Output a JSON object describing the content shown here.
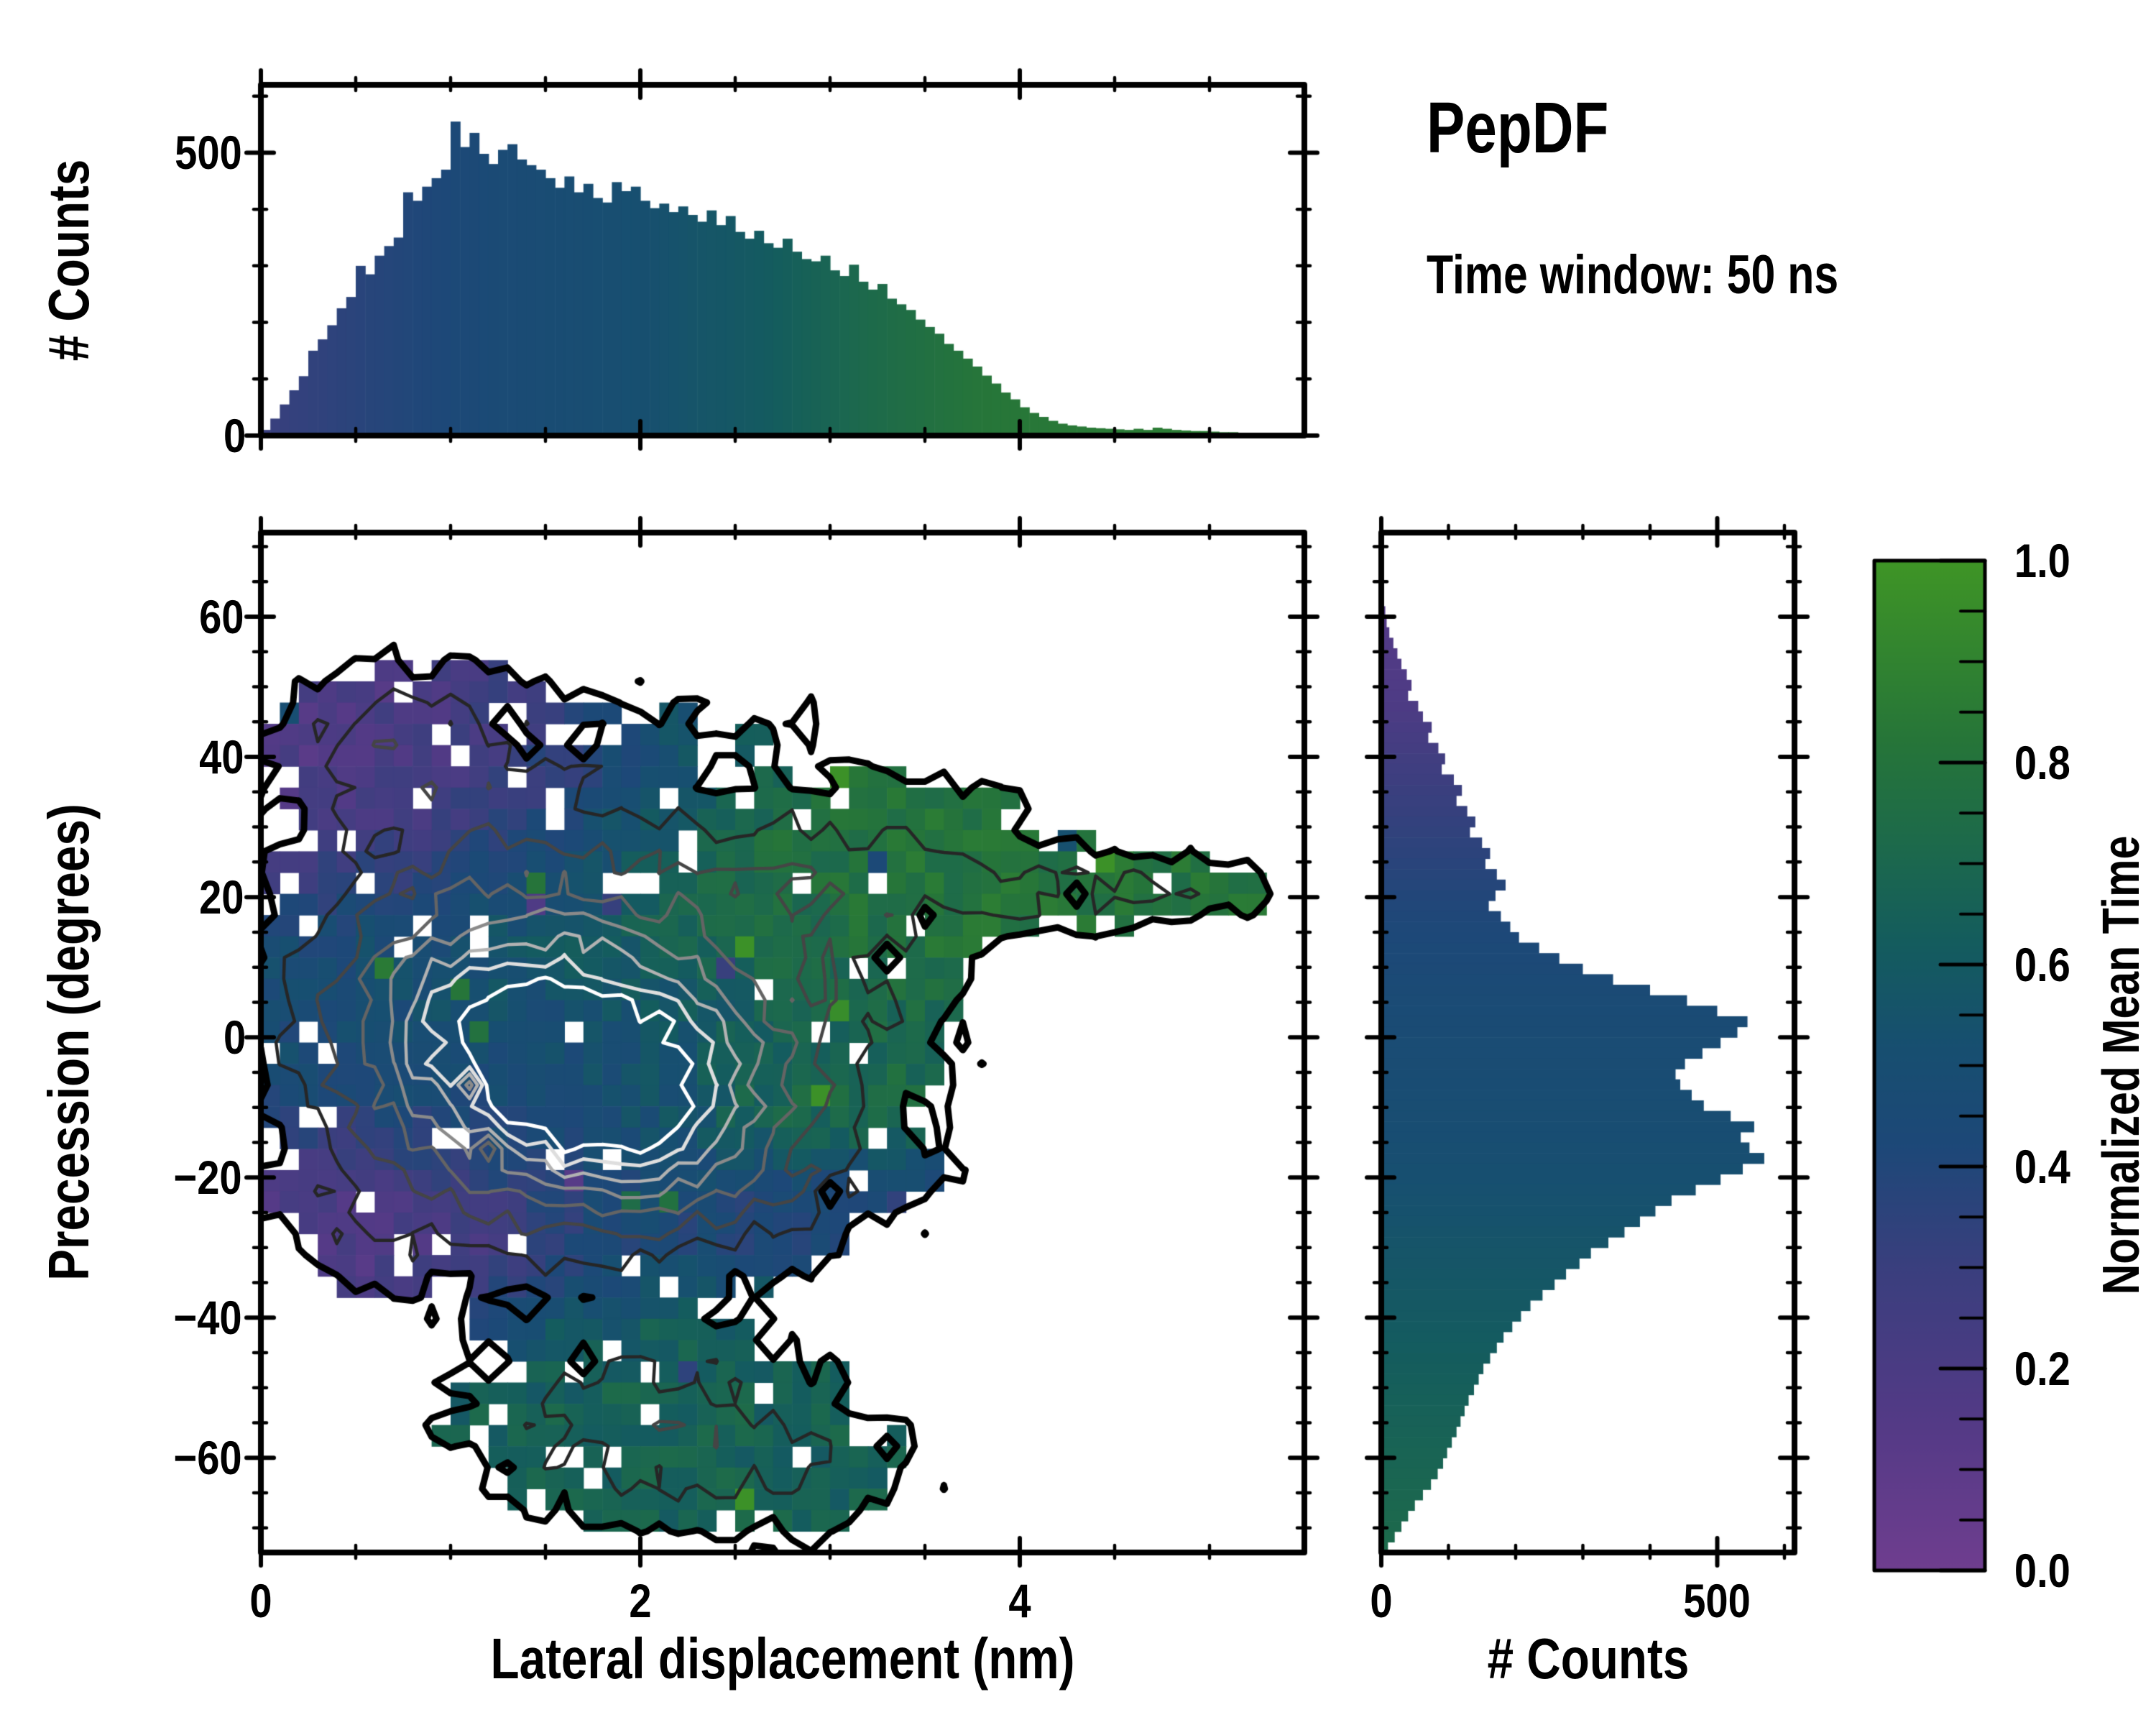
{
  "header": {
    "title": "PepDF",
    "subtitle": "Time window: 50 ns"
  },
  "colors": {
    "background": "#ffffff",
    "axis": "#000000",
    "colormap": [
      [
        0,
        "#6f3e8f"
      ],
      [
        0.15,
        "#533a86"
      ],
      [
        0.3,
        "#3a3f7e"
      ],
      [
        0.42,
        "#1d4878"
      ],
      [
        0.52,
        "#174f70"
      ],
      [
        0.62,
        "#145c5e"
      ],
      [
        0.72,
        "#1d6a4b"
      ],
      [
        0.82,
        "#267539"
      ],
      [
        1,
        "#3f9526"
      ]
    ],
    "contour_colors": [
      "#000000",
      "#262626",
      "#454545",
      "#646464",
      "#8a8a8a",
      "#b2b2b2",
      "#dedede",
      "#ffffff"
    ]
  },
  "chart_data": [
    {
      "id": "top_histogram",
      "type": "bar",
      "orientation": "vertical",
      "ylabel": "# Counts",
      "x_range": [
        0,
        5.5
      ],
      "bin_width": 0.05,
      "ylim": [
        0,
        620
      ],
      "y_ticks": [
        {
          "v": 0,
          "label": "0"
        },
        {
          "v": 500,
          "label": "500"
        }
      ],
      "y_minor_step": 100,
      "x_ticks": [
        0,
        2,
        4
      ],
      "x_minor_step": 0.5,
      "values": [
        10,
        30,
        55,
        80,
        105,
        150,
        170,
        195,
        225,
        245,
        300,
        285,
        318,
        335,
        350,
        430,
        415,
        440,
        455,
        470,
        555,
        510,
        535,
        498,
        480,
        505,
        515,
        488,
        478,
        470,
        455,
        438,
        458,
        430,
        445,
        420,
        412,
        448,
        432,
        440,
        415,
        402,
        410,
        395,
        405,
        390,
        378,
        398,
        372,
        388,
        360,
        348,
        362,
        340,
        332,
        348,
        325,
        312,
        308,
        318,
        292,
        282,
        302,
        272,
        258,
        268,
        242,
        232,
        222,
        205,
        192,
        180,
        162,
        150,
        136,
        122,
        106,
        92,
        76,
        64,
        50,
        40,
        33,
        26,
        21,
        18,
        16,
        14,
        13,
        12,
        11,
        10,
        12,
        10,
        14,
        12,
        10,
        9,
        8,
        8,
        7,
        6,
        6,
        5,
        5,
        4,
        4,
        3,
        3,
        2
      ],
      "color_profile": [
        [
          0,
          0.3
        ],
        [
          0.6,
          0.38
        ],
        [
          1.2,
          0.45
        ],
        [
          2.0,
          0.52
        ],
        [
          2.6,
          0.6
        ],
        [
          3.2,
          0.72
        ],
        [
          3.8,
          0.82
        ],
        [
          4.5,
          0.85
        ],
        [
          5.5,
          0.88
        ]
      ]
    },
    {
      "id": "main_heatmap",
      "type": "heatmap",
      "xlabel": "Lateral displacement (nm)",
      "ylabel": "Precession (degrees)",
      "xlim": [
        0,
        5.5
      ],
      "ylim": [
        -73.5,
        72
      ],
      "x_ticks": [
        {
          "v": 0,
          "label": "0"
        },
        {
          "v": 2,
          "label": "2"
        },
        {
          "v": 4,
          "label": "4"
        }
      ],
      "x_minor_step": 0.5,
      "y_ticks": [
        {
          "v": 60,
          "label": "60"
        },
        {
          "v": 40,
          "label": "40"
        },
        {
          "v": 20,
          "label": "20"
        },
        {
          "v": 0,
          "label": "0"
        },
        {
          "v": -20,
          "label": "−20"
        },
        {
          "v": -40,
          "label": "−40"
        },
        {
          "v": -60,
          "label": "−60"
        }
      ],
      "y_minor_step": 5,
      "grid": {
        "nx": 55,
        "ny": 48
      },
      "fill_threshold": 0.3,
      "noise": {
        "seed": 11,
        "corner_sigma": 0.105,
        "spike_prob": 0.015,
        "spike": -0.55,
        "hole_base": 0.16,
        "hole_slope": 0.12,
        "hole_min": 0.03,
        "value_sigma": 0.07,
        "value_flip_prob": 0.02,
        "value_flip": 0.3
      },
      "density_blobs": [
        [
          1.2,
          2,
          0.75,
          16,
          1.35
        ],
        [
          2.0,
          -13,
          0.6,
          12,
          1.0
        ],
        [
          2.6,
          5,
          0.9,
          14,
          0.55
        ],
        [
          1.1,
          38,
          0.8,
          11,
          0.38
        ],
        [
          0.55,
          44,
          0.45,
          9,
          0.3
        ],
        [
          2.9,
          25,
          0.9,
          9,
          0.3
        ],
        [
          1.9,
          -52,
          0.9,
          12,
          0.45
        ],
        [
          2.6,
          -62,
          0.8,
          9,
          0.35
        ],
        [
          4.1,
          21,
          0.75,
          4.5,
          0.34
        ],
        [
          4.95,
          21,
          0.45,
          3.5,
          0.3
        ],
        [
          0.5,
          -27,
          0.5,
          8,
          0.3
        ],
        [
          3.1,
          -22,
          0.5,
          7,
          0.3
        ],
        [
          2.8,
          47,
          1.0,
          6,
          0.18
        ],
        [
          3.7,
          33,
          0.6,
          5,
          0.18
        ]
      ],
      "value_blobs": [
        [
          0.9,
          42,
          0.9,
          12,
          5.0,
          0.1
        ],
        [
          0.4,
          -28,
          0.7,
          9,
          4.0,
          0.1
        ],
        [
          1.2,
          0,
          1.0,
          14,
          2.5,
          0.45
        ],
        [
          2.0,
          -12,
          0.9,
          10,
          2.0,
          0.48
        ],
        [
          3.0,
          15,
          1.2,
          12,
          2.0,
          0.8
        ],
        [
          2.9,
          40,
          1.2,
          14,
          3.0,
          0.85
        ],
        [
          4.5,
          20,
          1.0,
          8,
          2.5,
          0.82
        ],
        [
          2.2,
          -55,
          1.4,
          14,
          2.2,
          0.68
        ],
        [
          3.0,
          -24,
          0.6,
          8,
          1.8,
          0.28
        ],
        [
          2.9,
          -10,
          0.45,
          6,
          3.0,
          0.9
        ]
      ],
      "value_base": {
        "weight": 0.3,
        "value": 0.55
      },
      "contours": {
        "levels": [
          0.3,
          0.52,
          0.72,
          0.92,
          1.1,
          1.28,
          1.44,
          1.58
        ],
        "widths": [
          9,
          4.5,
          4.5,
          4.5,
          4.5,
          4.5,
          5,
          5
        ]
      }
    },
    {
      "id": "right_histogram",
      "type": "bar",
      "orientation": "horizontal",
      "xlabel": "# Counts",
      "y_range": [
        72,
        -73.5
      ],
      "bin_height": 1.5,
      "xlim": [
        0,
        615
      ],
      "x_ticks": [
        {
          "v": 0,
          "label": "0"
        },
        {
          "v": 500,
          "label": "500"
        }
      ],
      "x_minor_step": 100,
      "y_minor_step": 5,
      "values": [
        0,
        0,
        0,
        0,
        2,
        3,
        4,
        6,
        8,
        12,
        18,
        24,
        30,
        38,
        45,
        40,
        55,
        62,
        75,
        70,
        85,
        95,
        90,
        108,
        120,
        112,
        128,
        140,
        132,
        150,
        162,
        155,
        172,
        185,
        170,
        160,
        178,
        192,
        205,
        235,
        265,
        300,
        345,
        400,
        455,
        500,
        545,
        530,
        505,
        478,
        452,
        438,
        445,
        462,
        480,
        520,
        555,
        535,
        548,
        570,
        538,
        505,
        468,
        432,
        408,
        385,
        362,
        338,
        312,
        295,
        275,
        258,
        240,
        222,
        208,
        195,
        182,
        172,
        162,
        152,
        145,
        138,
        130,
        124,
        118,
        112,
        105,
        98,
        92,
        84,
        74,
        62,
        50,
        40,
        30,
        20,
        10
      ],
      "color_profile": [
        [
          -73,
          0.72
        ],
        [
          -55,
          0.66
        ],
        [
          -35,
          0.58
        ],
        [
          -15,
          0.5
        ],
        [
          5,
          0.46
        ],
        [
          20,
          0.4
        ],
        [
          35,
          0.3
        ],
        [
          48,
          0.18
        ],
        [
          72,
          0.12
        ]
      ]
    },
    {
      "id": "colorbar",
      "type": "colorbar",
      "label": "Normalized Mean Time",
      "range": [
        0,
        1
      ],
      "ticks": [
        {
          "v": 0,
          "label": "0.0"
        },
        {
          "v": 0.2,
          "label": "0.2"
        },
        {
          "v": 0.4,
          "label": "0.4"
        },
        {
          "v": 0.6,
          "label": "0.6"
        },
        {
          "v": 0.8,
          "label": "0.8"
        },
        {
          "v": 1,
          "label": "1.0"
        }
      ],
      "minor_step": 0.05
    }
  ]
}
